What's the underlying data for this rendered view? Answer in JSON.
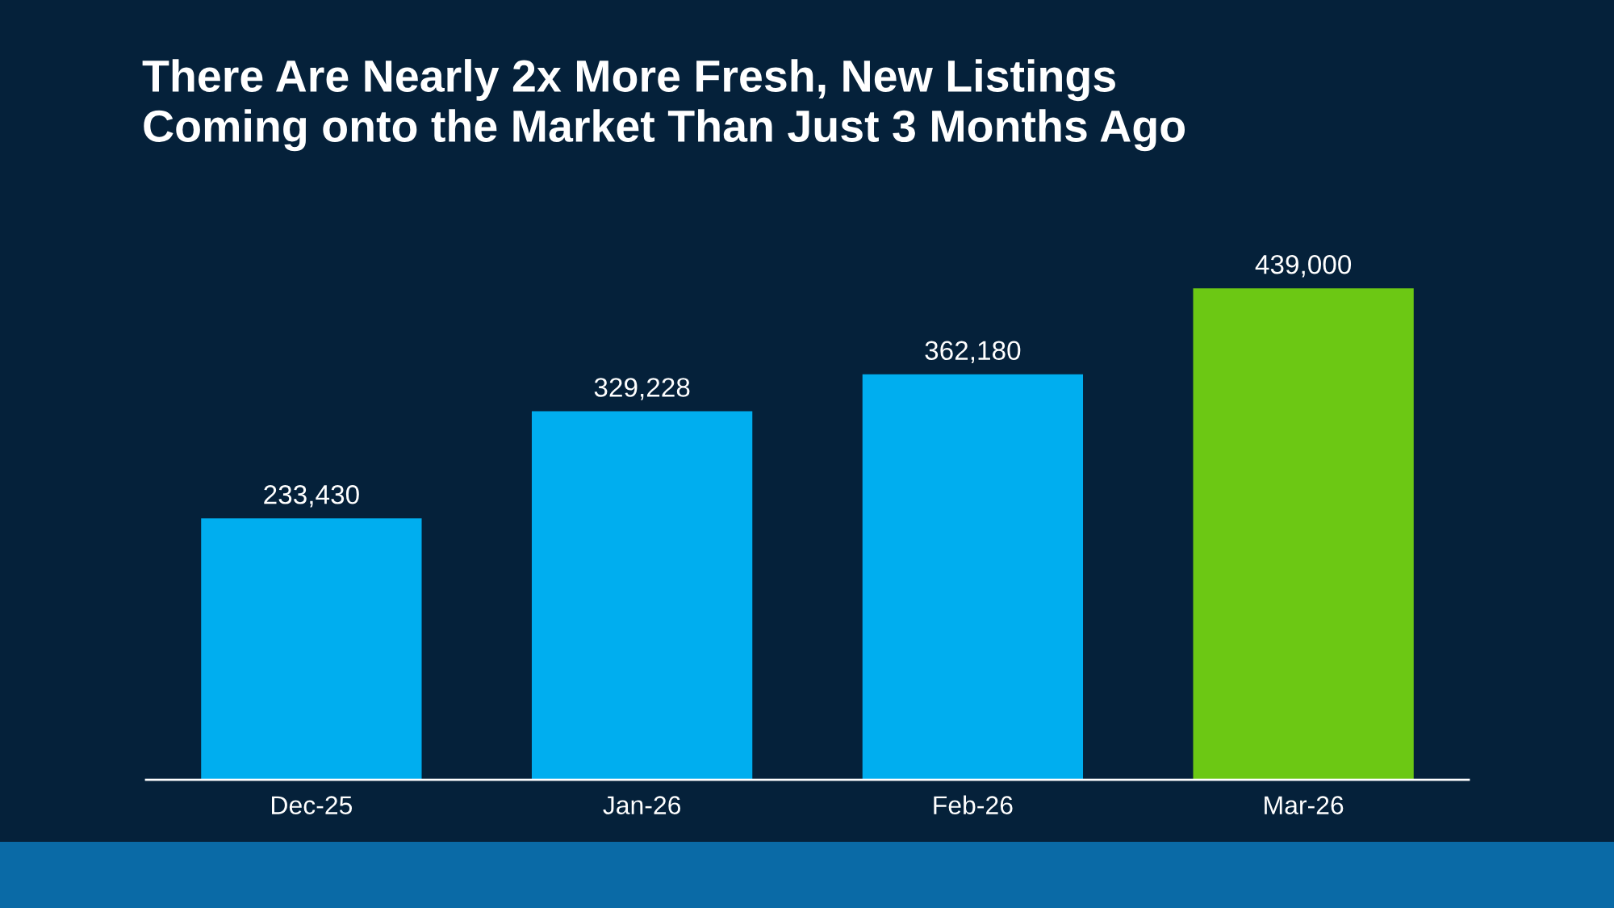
{
  "chart_data": {
    "type": "bar",
    "title": "There Are Nearly 2x More Fresh, New Listings\nComing onto the Market Than Just 3 Months Ago",
    "categories": [
      "Dec-25",
      "Jan-26",
      "Feb-26",
      "Mar-26"
    ],
    "values": [
      233430,
      329228,
      362180,
      439000
    ],
    "colors": [
      "#00aeef",
      "#00aeef",
      "#00aeef",
      "#6cc814"
    ],
    "value_labels": [
      "233,430",
      "329,228",
      "362,180",
      "439,000"
    ],
    "tick_labels": "x"
  }
}
